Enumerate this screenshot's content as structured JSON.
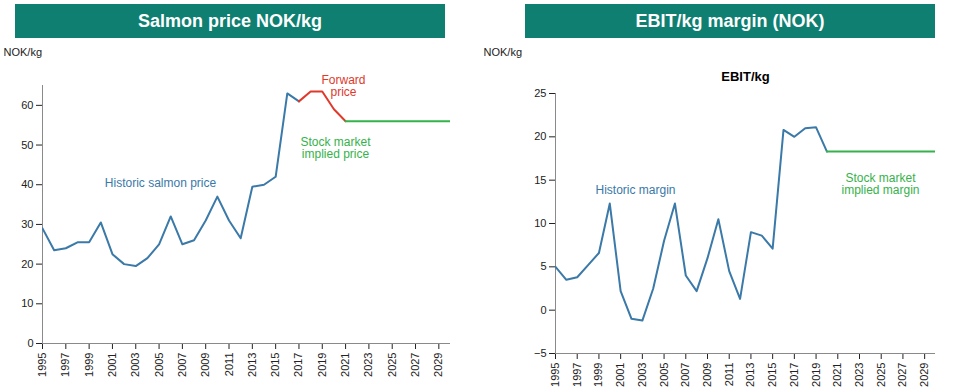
{
  "chart_data": [
    {
      "type": "line",
      "title": "Salmon price NOK/kg",
      "y_label": "NOK/kg",
      "x": [
        1995,
        1996,
        1997,
        1998,
        1999,
        2000,
        2001,
        2002,
        2003,
        2004,
        2005,
        2006,
        2007,
        2008,
        2009,
        2010,
        2011,
        2012,
        2013,
        2014,
        2015,
        2016,
        2017,
        2018,
        2019,
        2020,
        2021,
        2022,
        2023,
        2024,
        2025,
        2026,
        2027,
        2028,
        2029,
        2030
      ],
      "xlim": [
        1995,
        2030
      ],
      "xticks": [
        1995,
        1997,
        1999,
        2001,
        2003,
        2005,
        2007,
        2009,
        2011,
        2013,
        2015,
        2017,
        2019,
        2021,
        2023,
        2025,
        2027,
        2029
      ],
      "ylim": [
        0,
        65
      ],
      "yticks": [
        0,
        10,
        20,
        30,
        40,
        50,
        60
      ],
      "series": [
        {
          "name": "Historic salmon price",
          "color": "#3a79a8",
          "values": [
            29,
            23.5,
            24,
            25.5,
            25.5,
            30.5,
            22.5,
            20,
            19.5,
            21.5,
            25,
            32,
            25,
            26,
            31,
            37,
            31,
            26.5,
            39.5,
            40,
            42,
            63,
            61,
            null,
            null,
            null,
            null,
            null,
            null,
            null,
            null,
            null,
            null,
            null,
            null,
            null
          ]
        },
        {
          "name": "Forward price",
          "color": "#e0392b",
          "values": [
            null,
            null,
            null,
            null,
            null,
            null,
            null,
            null,
            null,
            null,
            null,
            null,
            null,
            null,
            null,
            null,
            null,
            null,
            null,
            null,
            null,
            null,
            61,
            63.5,
            63.5,
            59,
            56,
            null,
            null,
            null,
            null,
            null,
            null,
            null,
            null,
            null
          ]
        },
        {
          "name": "Stock market implied price",
          "color": "#35b24a",
          "values": [
            null,
            null,
            null,
            null,
            null,
            null,
            null,
            null,
            null,
            null,
            null,
            null,
            null,
            null,
            null,
            null,
            null,
            null,
            null,
            null,
            null,
            null,
            null,
            null,
            null,
            null,
            56,
            56,
            56,
            56,
            56,
            56,
            56,
            56,
            56,
            56
          ]
        }
      ]
    },
    {
      "type": "line",
      "title": "EBIT/kg margin (NOK)",
      "subtitle": "EBIT/kg",
      "y_label": "NOK/kg",
      "x": [
        1995,
        1996,
        1997,
        1998,
        1999,
        2000,
        2001,
        2002,
        2003,
        2004,
        2005,
        2006,
        2007,
        2008,
        2009,
        2010,
        2011,
        2012,
        2013,
        2014,
        2015,
        2016,
        2017,
        2018,
        2019,
        2020,
        2021,
        2022,
        2023,
        2024,
        2025,
        2026,
        2027,
        2028,
        2029,
        2030
      ],
      "xlim": [
        1995,
        2030
      ],
      "xticks": [
        1995,
        1997,
        1999,
        2001,
        2003,
        2005,
        2007,
        2009,
        2011,
        2013,
        2015,
        2017,
        2019,
        2021,
        2023,
        2025,
        2027,
        2029
      ],
      "ylim": [
        -5,
        25
      ],
      "yticks": [
        -5,
        0,
        5,
        10,
        15,
        20,
        25
      ],
      "series": [
        {
          "name": "Historic margin",
          "color": "#3a79a8",
          "values": [
            5,
            3.5,
            3.8,
            5.2,
            6.6,
            12.3,
            2.2,
            -1,
            -1.2,
            2.5,
            8,
            12.3,
            4,
            2.2,
            6,
            10.5,
            4.5,
            1.3,
            9,
            8.6,
            7.1,
            20.8,
            20,
            21,
            21.1,
            18.3,
            null,
            null,
            null,
            null,
            null,
            null,
            null,
            null,
            null,
            null
          ]
        },
        {
          "name": "Stock market implied margin",
          "color": "#35b24a",
          "values": [
            null,
            null,
            null,
            null,
            null,
            null,
            null,
            null,
            null,
            null,
            null,
            null,
            null,
            null,
            null,
            null,
            null,
            null,
            null,
            null,
            null,
            null,
            null,
            null,
            null,
            18.3,
            18.3,
            18.3,
            18.3,
            18.3,
            18.3,
            18.3,
            18.3,
            18.3,
            18.3,
            18.3
          ]
        }
      ]
    }
  ]
}
